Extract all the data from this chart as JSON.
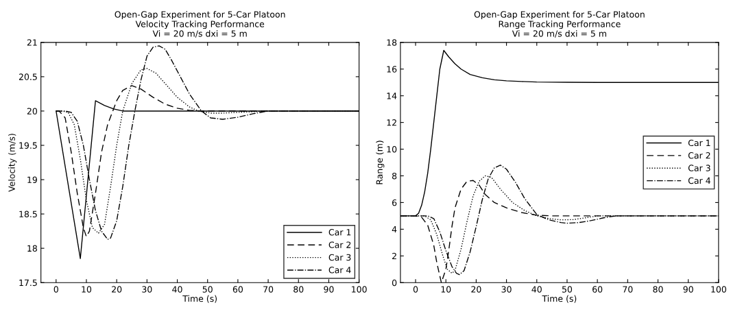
{
  "chart_data": [
    {
      "type": "line",
      "title": "Open-Gap Experiment for 5-Car Platoon\nVelocity Tracking Performance\nVi = 20 m/s dxi = 5 m",
      "xlabel": "Time (s)",
      "ylabel": "Velocity (m/s)",
      "xlim": [
        -5,
        100
      ],
      "xticks": [
        0,
        10,
        20,
        30,
        40,
        50,
        60,
        70,
        80,
        90,
        100
      ],
      "ylim": [
        17.5,
        21
      ],
      "yticks": [
        17.5,
        18,
        18.5,
        19,
        19.5,
        20,
        20.5,
        21
      ],
      "grid": false,
      "legend": "bottom right",
      "series": [
        {
          "name": "Car 1",
          "color": "#000000",
          "line_style": "solid",
          "x": [
            0,
            8,
            13,
            16,
            19,
            22,
            100
          ],
          "values": [
            20,
            17.85,
            20.15,
            20.08,
            20.03,
            20,
            20
          ]
        },
        {
          "name": "Car 2",
          "color": "#000000",
          "line_style": "dashed",
          "x": [
            0,
            1,
            3,
            5,
            7,
            9,
            10,
            11,
            13,
            15,
            17,
            20,
            22,
            25,
            28,
            32,
            36,
            40,
            44,
            48,
            60,
            100
          ],
          "values": [
            20,
            20,
            19.9,
            19.4,
            18.8,
            18.3,
            18.17,
            18.25,
            18.8,
            19.4,
            19.8,
            20.15,
            20.3,
            20.37,
            20.32,
            20.2,
            20.1,
            20.04,
            20.01,
            20,
            20,
            20
          ]
        },
        {
          "name": "Car 3",
          "color": "#000000",
          "line_style": "dotted",
          "x": [
            0,
            2,
            4,
            6,
            8,
            10,
            12,
            14,
            16,
            18,
            20,
            22,
            25,
            28,
            30,
            33,
            36,
            40,
            44,
            47,
            51,
            55,
            60,
            65,
            70,
            100
          ],
          "values": [
            20,
            20,
            19.98,
            19.8,
            19.3,
            18.7,
            18.3,
            18.22,
            18.35,
            18.9,
            19.5,
            20,
            20.4,
            20.6,
            20.62,
            20.55,
            20.4,
            20.2,
            20.06,
            20,
            19.97,
            19.97,
            19.98,
            19.99,
            20,
            20
          ]
        },
        {
          "name": "Car 4",
          "color": "#000000",
          "line_style": "dashdot",
          "x": [
            0,
            3,
            5,
            7,
            9,
            11,
            13,
            15,
            17,
            18,
            20,
            22,
            24,
            26,
            28,
            30,
            32,
            34,
            36,
            38,
            41,
            44,
            48,
            51,
            55,
            60,
            65,
            70,
            100
          ],
          "values": [
            20,
            20,
            19.98,
            19.85,
            19.5,
            19.0,
            18.55,
            18.25,
            18.13,
            18.15,
            18.4,
            18.9,
            19.5,
            20.0,
            20.45,
            20.8,
            20.93,
            20.95,
            20.9,
            20.75,
            20.5,
            20.25,
            20.0,
            19.9,
            19.88,
            19.91,
            19.96,
            20,
            20
          ]
        }
      ]
    },
    {
      "type": "line",
      "title": "Open-Gap Experiment for 5-Car Platoon\nRange Tracking Performance\nVi = 20 m/s dxi = 5 m",
      "xlabel": "Time (s)",
      "ylabel": "Range (m)",
      "xlim": [
        -5,
        100
      ],
      "xticks": [
        0,
        10,
        20,
        30,
        40,
        50,
        60,
        70,
        80,
        90,
        100
      ],
      "ylim": [
        0,
        18
      ],
      "yticks": [
        0,
        2,
        4,
        6,
        8,
        10,
        12,
        14,
        16,
        18
      ],
      "grid": false,
      "legend": "right",
      "series": [
        {
          "name": "Car 1",
          "color": "#000000",
          "line_style": "solid",
          "x": [
            -5,
            0,
            1,
            2,
            3,
            4,
            5,
            6,
            7,
            8,
            9.3,
            11,
            13,
            15,
            18,
            22,
            26,
            30,
            35,
            40,
            50,
            60,
            100
          ],
          "values": [
            5,
            5,
            5.2,
            5.8,
            6.8,
            8.2,
            10,
            12,
            14,
            16,
            17.4,
            16.9,
            16.4,
            16.0,
            15.6,
            15.35,
            15.2,
            15.12,
            15.07,
            15.03,
            15.01,
            15,
            15
          ]
        },
        {
          "name": "Car 2",
          "color": "#000000",
          "line_style": "dashed",
          "x": [
            -5,
            0,
            2,
            4,
            6,
            7,
            8.5,
            10,
            11,
            12,
            13,
            15,
            17,
            19,
            21,
            23,
            26,
            30,
            35,
            40,
            45,
            100
          ],
          "values": [
            5,
            5,
            4.9,
            4.3,
            2.8,
            1.5,
            0,
            1.0,
            2.5,
            4.2,
            5.6,
            7.0,
            7.6,
            7.65,
            7.3,
            6.6,
            6.0,
            5.6,
            5.25,
            5.05,
            5.0,
            5.0
          ]
        },
        {
          "name": "Car 3",
          "color": "#000000",
          "line_style": "dotted",
          "x": [
            -5,
            0,
            3,
            5,
            7,
            9,
            10.5,
            12,
            13,
            15,
            17,
            19,
            21,
            23,
            25,
            28,
            32,
            36,
            40,
            44,
            48,
            52,
            56,
            60,
            100
          ],
          "values": [
            5,
            5,
            5,
            4.7,
            3.6,
            2.0,
            1.0,
            0.7,
            0.9,
            2.5,
            4.6,
            6.5,
            7.6,
            8.0,
            7.9,
            7.0,
            6.0,
            5.4,
            5.0,
            4.8,
            4.7,
            4.72,
            4.85,
            5.0,
            5.0
          ]
        },
        {
          "name": "Car 4",
          "color": "#000000",
          "line_style": "dashdot",
          "x": [
            -5,
            0,
            4,
            6,
            8,
            10,
            12,
            13.5,
            14.5,
            16,
            18,
            20,
            22,
            24,
            26,
            28,
            30,
            33,
            36,
            40,
            44,
            48,
            50,
            54,
            58,
            62,
            66,
            100
          ],
          "values": [
            5,
            5,
            5,
            4.8,
            3.8,
            2.4,
            1.2,
            0.7,
            0.6,
            0.9,
            2.3,
            4.2,
            6.2,
            7.8,
            8.6,
            8.8,
            8.5,
            7.5,
            6.3,
            5.1,
            4.7,
            4.5,
            4.45,
            4.5,
            4.65,
            4.85,
            5.0,
            5.0
          ]
        }
      ]
    }
  ]
}
